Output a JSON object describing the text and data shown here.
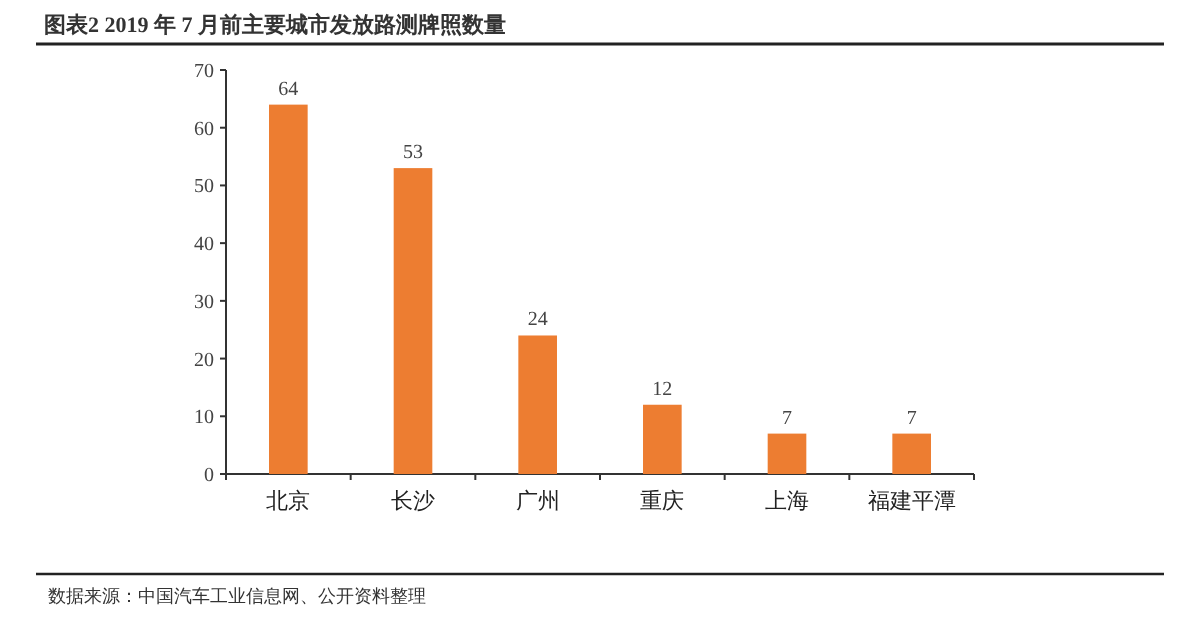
{
  "chart_data": {
    "type": "bar",
    "title": "图表2  2019 年 7 月前主要城市发放路测牌照数量",
    "categories": [
      "北京",
      "长沙",
      "广州",
      "重庆",
      "上海",
      "福建平潭"
    ],
    "values": [
      64,
      53,
      24,
      12,
      7,
      7
    ],
    "color": "#ed7d31",
    "ylim": [
      0,
      70
    ],
    "yticks": [
      0,
      10,
      20,
      30,
      40,
      50,
      60,
      70
    ],
    "data_labels": true,
    "grid": false,
    "annotations": [
      "数据来源：中国汽车工业信息网、公开资料整理"
    ]
  }
}
